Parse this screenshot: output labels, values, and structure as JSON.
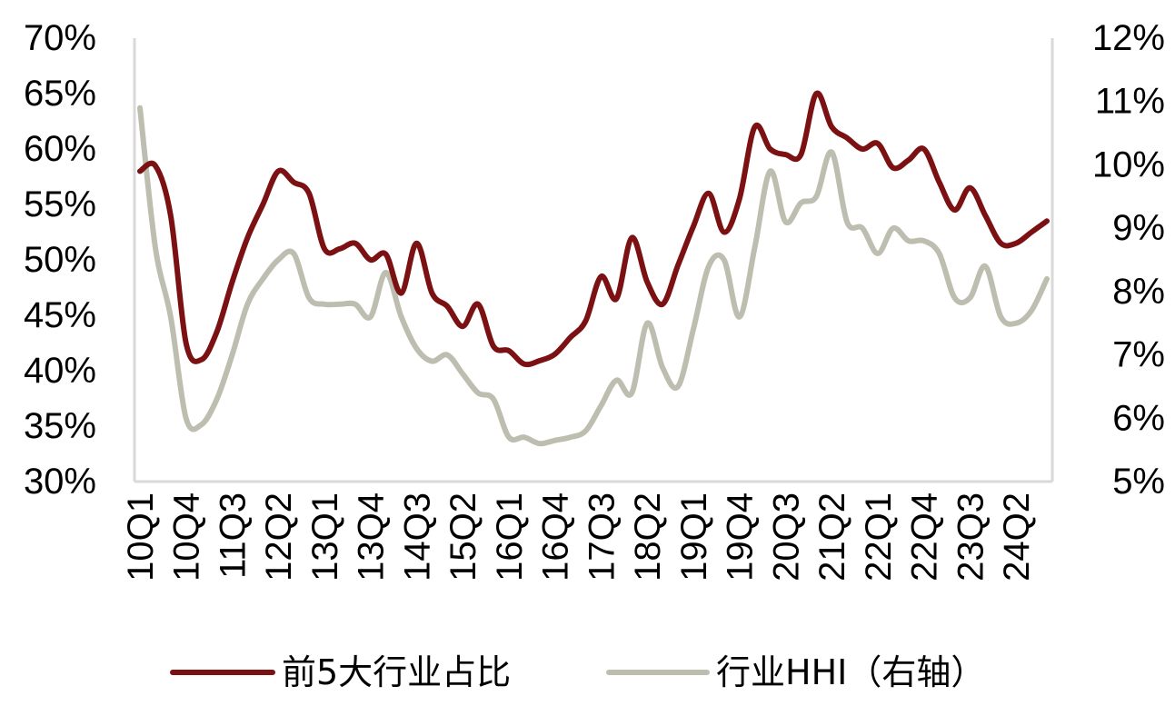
{
  "chart_data": {
    "type": "line",
    "categories": [
      "10Q1",
      "10Q2",
      "10Q3",
      "10Q4",
      "11Q1",
      "11Q2",
      "11Q3",
      "11Q4",
      "12Q1",
      "12Q2",
      "12Q3",
      "12Q4",
      "13Q1",
      "13Q2",
      "13Q3",
      "13Q4",
      "14Q1",
      "14Q2",
      "14Q3",
      "14Q4",
      "15Q1",
      "15Q2",
      "15Q3",
      "15Q4",
      "16Q1",
      "16Q2",
      "16Q3",
      "16Q4",
      "17Q1",
      "17Q2",
      "17Q3",
      "17Q4",
      "18Q1",
      "18Q2",
      "18Q3",
      "18Q4",
      "19Q1",
      "19Q2",
      "19Q3",
      "19Q4",
      "20Q1",
      "20Q2",
      "20Q3",
      "20Q4",
      "21Q1",
      "21Q2",
      "21Q3",
      "21Q4",
      "22Q1",
      "22Q2",
      "22Q3",
      "22Q4",
      "23Q1",
      "23Q2",
      "23Q3",
      "23Q4",
      "24Q1",
      "24Q2",
      "24Q3",
      "24Q4"
    ],
    "x_tick_labels": [
      "10Q1",
      "10Q4",
      "11Q3",
      "12Q2",
      "13Q1",
      "13Q4",
      "14Q3",
      "15Q2",
      "16Q1",
      "16Q4",
      "17Q3",
      "18Q2",
      "19Q1",
      "19Q4",
      "20Q3",
      "21Q2",
      "22Q1",
      "22Q4",
      "23Q3",
      "24Q2"
    ],
    "y_left": {
      "ticks": [
        "30%",
        "35%",
        "40%",
        "45%",
        "50%",
        "55%",
        "60%",
        "65%",
        "70%"
      ],
      "min": 30,
      "max": 70
    },
    "y_right": {
      "ticks": [
        "5%",
        "6%",
        "7%",
        "8%",
        "9%",
        "10%",
        "11%",
        "12%"
      ],
      "min": 5,
      "max": 12
    },
    "series": [
      {
        "name": "前5大行业占比",
        "axis": "left",
        "color": "#7b1113",
        "values": [
          58.0,
          58.5,
          54.0,
          42.5,
          41.0,
          43.5,
          48.0,
          52.0,
          55.0,
          58.0,
          57.0,
          56.0,
          51.0,
          51.0,
          51.5,
          50.0,
          50.5,
          47.0,
          51.5,
          47.0,
          45.8,
          44.0,
          46.0,
          42.2,
          41.8,
          40.6,
          40.9,
          41.5,
          43.0,
          44.5,
          48.5,
          46.5,
          52.0,
          48.0,
          46.0,
          49.5,
          53.0,
          56.0,
          52.5,
          55.5,
          62.0,
          60.0,
          59.5,
          59.5,
          65.0,
          62.0,
          61.0,
          60.0,
          60.5,
          58.3,
          59.0,
          60.0,
          57.0,
          54.5,
          56.5,
          54.0,
          51.5,
          51.5,
          52.5,
          53.5
        ]
      },
      {
        "name": "行业HHI（右轴）",
        "axis": "right",
        "color": "#bdbdb0",
        "values": [
          10.9,
          8.7,
          7.6,
          6.0,
          5.9,
          6.3,
          7.0,
          7.8,
          8.2,
          8.5,
          8.6,
          7.9,
          7.8,
          7.8,
          7.8,
          7.6,
          8.3,
          7.6,
          7.1,
          6.9,
          7.0,
          6.7,
          6.4,
          6.3,
          5.7,
          5.7,
          5.6,
          5.65,
          5.7,
          5.8,
          6.2,
          6.6,
          6.4,
          7.5,
          6.8,
          6.5,
          7.4,
          8.4,
          8.5,
          7.6,
          8.7,
          9.9,
          9.1,
          9.4,
          9.5,
          10.2,
          9.1,
          9.0,
          8.6,
          9.0,
          8.8,
          8.8,
          8.6,
          7.9,
          7.9,
          8.4,
          7.6,
          7.5,
          7.7,
          8.2
        ]
      }
    ],
    "legend_position": "bottom",
    "grid": false
  }
}
